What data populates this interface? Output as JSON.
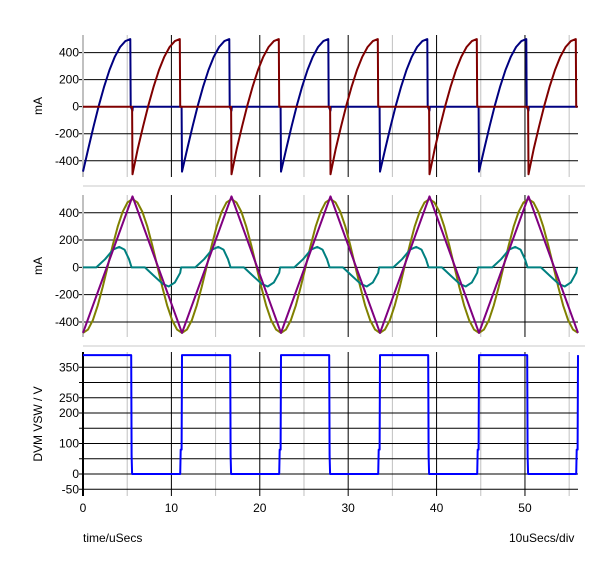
{
  "chart_data": [
    {
      "type": "line",
      "panel": "top",
      "ylabel": "mA",
      "ylim": [
        -520,
        530
      ],
      "yticks": [
        400,
        200,
        0,
        -200,
        -400
      ],
      "ygrid": [
        400,
        200,
        0,
        -200,
        -400
      ],
      "period": 11.2,
      "series": [
        {
          "name": "current-blue",
          "color": "#000080",
          "cycle": [
            [
              0,
              -480
            ],
            [
              0.6,
              -310
            ],
            [
              1.2,
              -145
            ],
            [
              1.8,
              10
            ],
            [
              2.4,
              150
            ],
            [
              3.0,
              271
            ],
            [
              3.6,
              369
            ],
            [
              4.2,
              441
            ],
            [
              4.8,
              485
            ],
            [
              5.35,
              500
            ],
            [
              5.4,
              0
            ],
            [
              5.6,
              -30
            ],
            [
              5.65,
              0
            ],
            [
              11.15,
              0
            ]
          ]
        },
        {
          "name": "current-red",
          "color": "#800000",
          "cycle": [
            [
              0,
              0
            ],
            [
              5.55,
              0
            ],
            [
              5.6,
              -500
            ],
            [
              6.2,
              -310
            ],
            [
              6.8,
              -145
            ],
            [
              7.4,
              10
            ],
            [
              8.0,
              150
            ],
            [
              8.6,
              271
            ],
            [
              9.2,
              369
            ],
            [
              9.8,
              441
            ],
            [
              10.4,
              485
            ],
            [
              10.95,
              500
            ],
            [
              11.0,
              0
            ],
            [
              11.15,
              0
            ]
          ]
        }
      ]
    },
    {
      "type": "line",
      "panel": "middle",
      "ylabel": "mA",
      "ylim": [
        -510,
        530
      ],
      "yticks": [
        400,
        200,
        0,
        -200,
        -400
      ],
      "ygrid": [
        400,
        200,
        0,
        -200,
        -400
      ],
      "period": 11.2,
      "series": [
        {
          "name": "current-olive",
          "color": "#808000",
          "cycle": [
            [
              0,
              -480
            ],
            [
              0.56,
              -456
            ],
            [
              1.12,
              -386
            ],
            [
              1.68,
              -278
            ],
            [
              2.24,
              -141
            ],
            [
              2.8,
              10
            ],
            [
              3.36,
              161
            ],
            [
              3.92,
              298
            ],
            [
              4.48,
              406
            ],
            [
              5.04,
              476
            ],
            [
              5.6,
              500
            ],
            [
              6.16,
              476
            ],
            [
              6.72,
              406
            ],
            [
              7.28,
              298
            ],
            [
              7.84,
              161
            ],
            [
              8.4,
              10
            ],
            [
              8.96,
              -141
            ],
            [
              9.52,
              -278
            ],
            [
              10.08,
              -386
            ],
            [
              10.64,
              -456
            ],
            [
              11.2,
              -480
            ]
          ]
        },
        {
          "name": "current-teal",
          "color": "#008080",
          "cycle": [
            [
              0,
              0
            ],
            [
              1.5,
              0
            ],
            [
              2.5,
              60
            ],
            [
              3.4,
              130
            ],
            [
              4.1,
              150
            ],
            [
              4.7,
              130
            ],
            [
              5.2,
              60
            ],
            [
              5.5,
              0
            ],
            [
              7.0,
              0
            ],
            [
              8.0,
              -60
            ],
            [
              9.0,
              -120
            ],
            [
              9.7,
              -140
            ],
            [
              10.4,
              -110
            ],
            [
              11.0,
              -40
            ],
            [
              11.1,
              0
            ]
          ]
        },
        {
          "name": "current-purple",
          "color": "#800080",
          "cycle": [
            [
              0,
              -480
            ],
            [
              5.6,
              520
            ],
            [
              11.2,
              -480
            ]
          ]
        }
      ]
    },
    {
      "type": "line",
      "panel": "bottom",
      "ylabel": "DVM VSW / V",
      "ylim": [
        -72,
        400
      ],
      "yticks": [
        350,
        250,
        200,
        100,
        0,
        -50
      ],
      "ygrid": [
        350,
        300,
        250,
        200,
        150,
        100,
        50,
        0,
        -50
      ],
      "period": 11.2,
      "series": [
        {
          "name": "vsw-blue",
          "color": "#0000ff",
          "cycle": [
            [
              0,
              390
            ],
            [
              5.45,
              390
            ],
            [
              5.5,
              60
            ],
            [
              5.55,
              0
            ],
            [
              11.0,
              0
            ],
            [
              11.05,
              80
            ],
            [
              11.15,
              80
            ],
            [
              11.2,
              390
            ]
          ]
        }
      ]
    }
  ],
  "xaxis": {
    "xlim": [
      0,
      56
    ],
    "xticks": [
      0,
      10,
      20,
      30,
      40,
      50
    ],
    "major_grid": [
      10,
      20,
      30,
      40,
      50
    ],
    "minor_grid": [
      5,
      15,
      25,
      35,
      45,
      55
    ],
    "xlabel": "time/uSecs",
    "scale_label": "10uSecs/div"
  }
}
